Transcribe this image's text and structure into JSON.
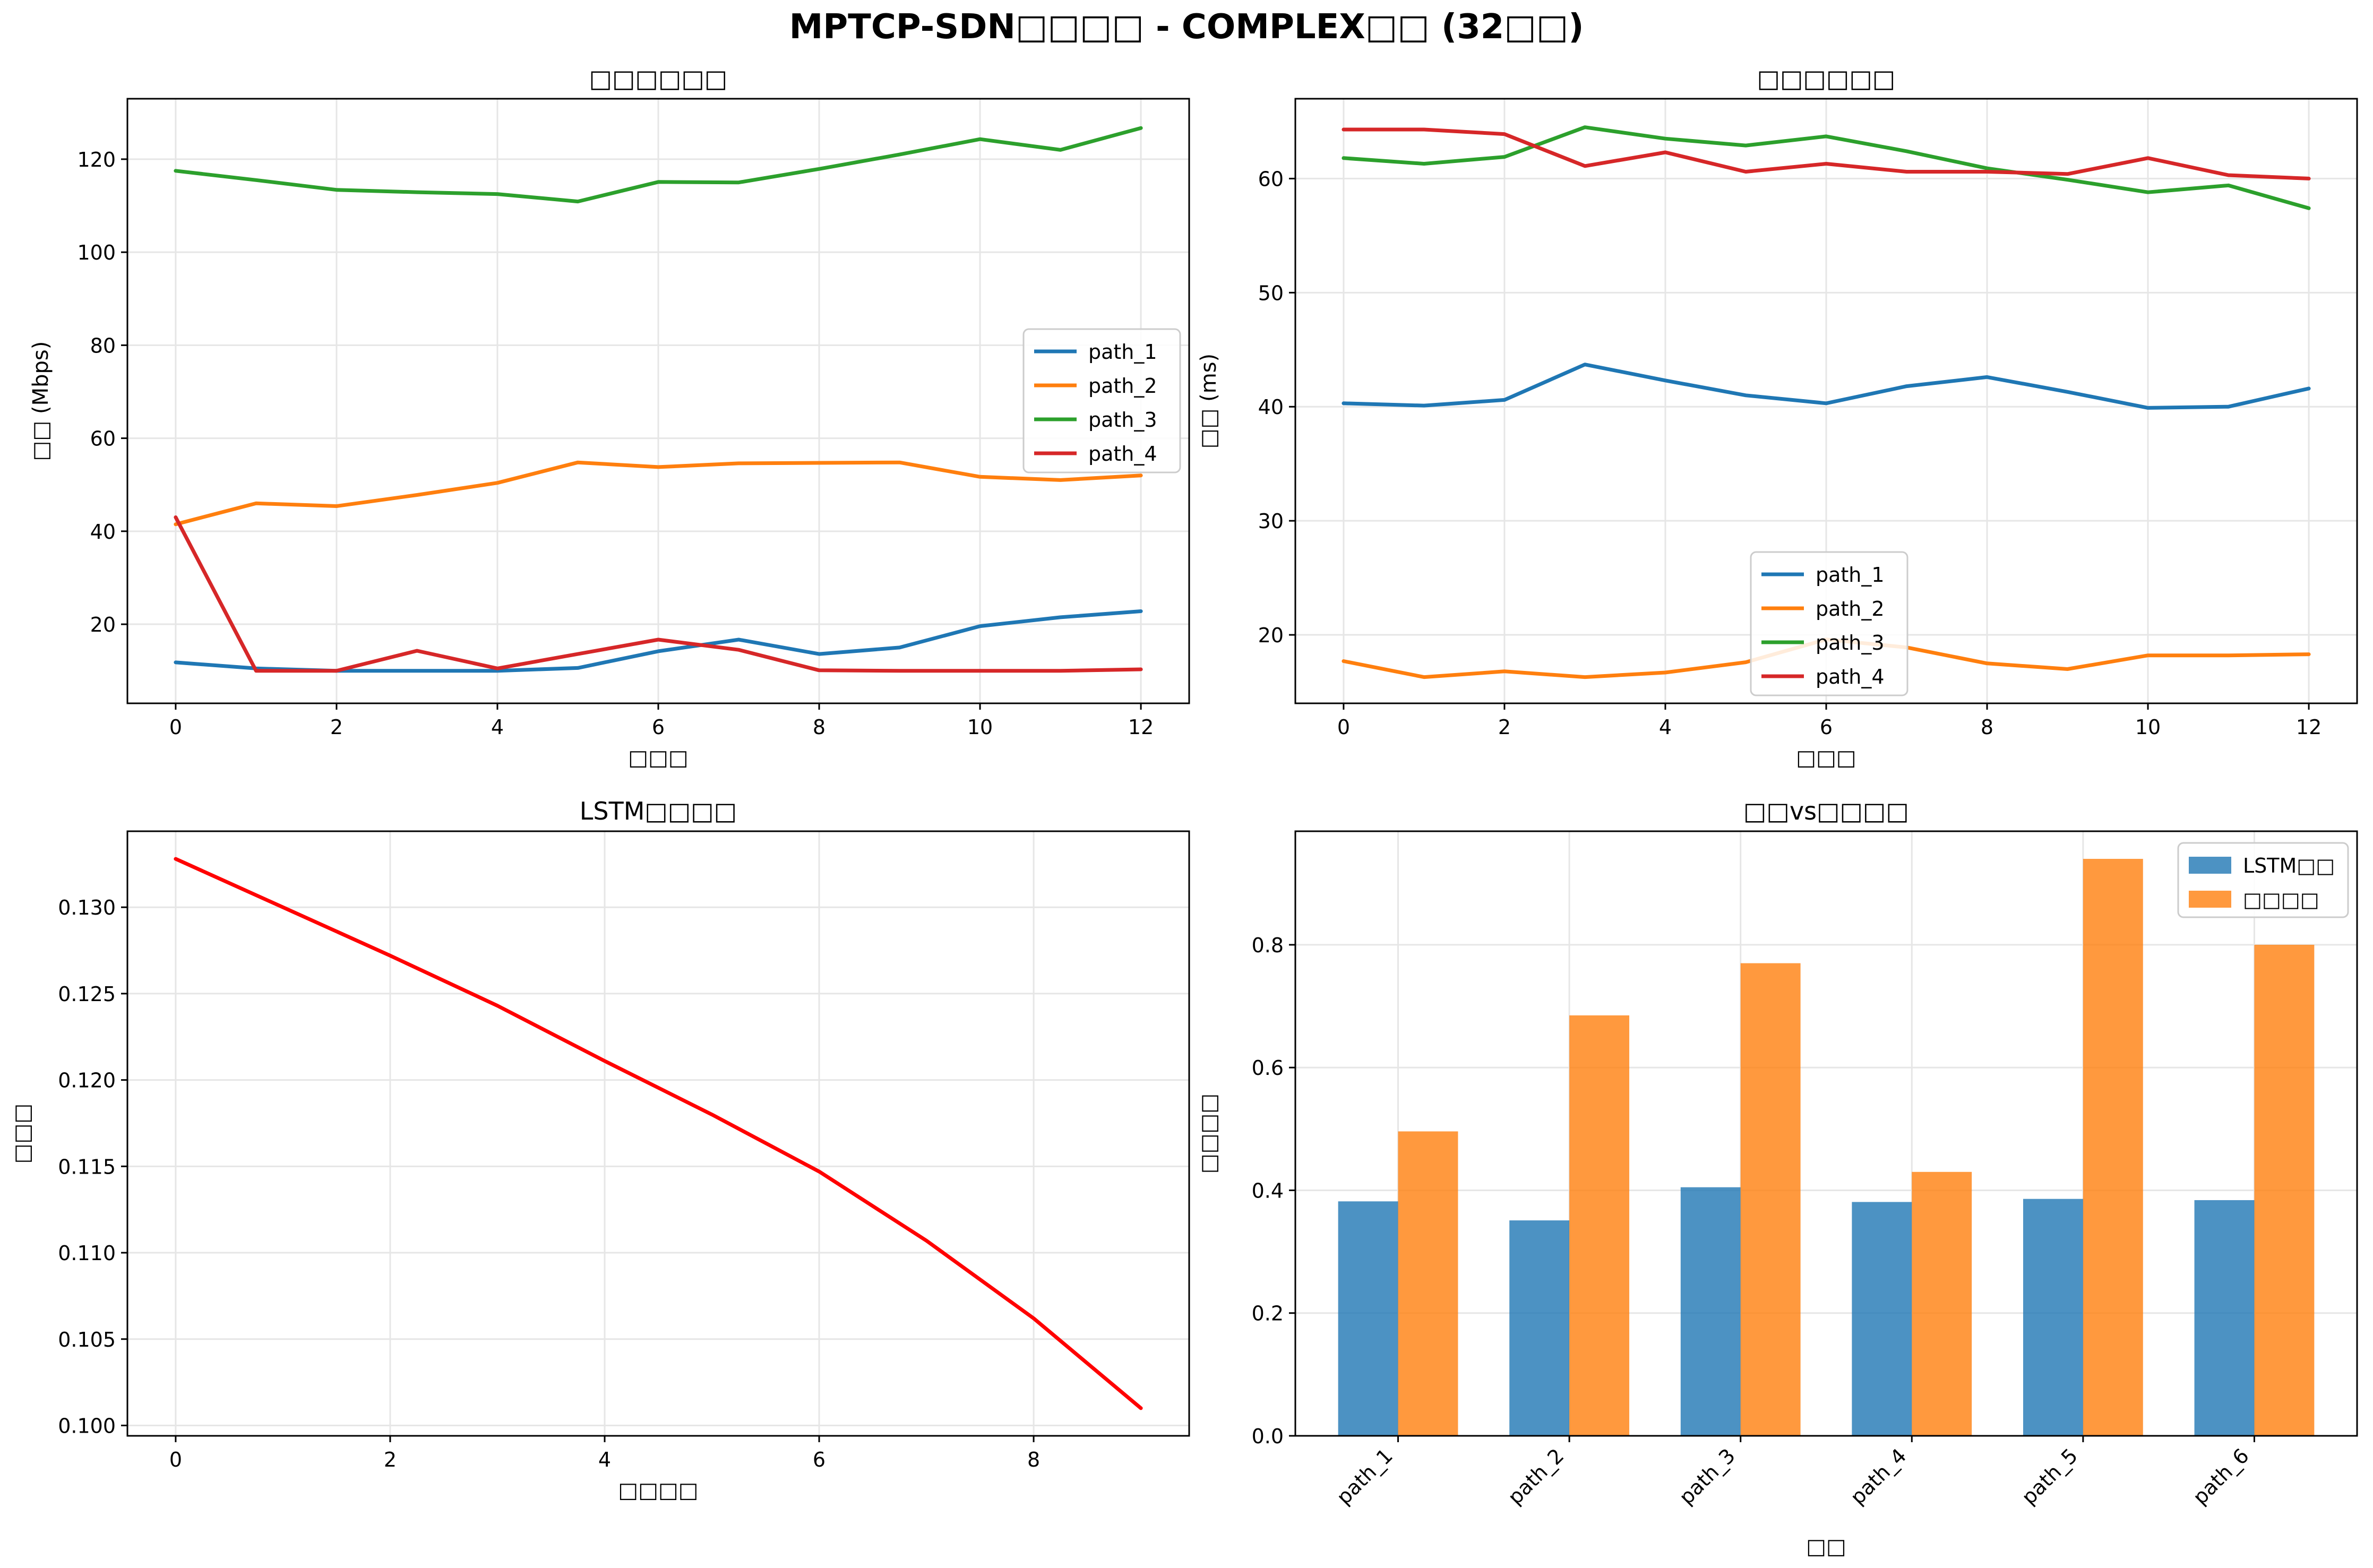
{
  "title": "MPTCP-SDN□□□□ - COMPLEX□□ (32□□)",
  "colors": {
    "blue": "#1f77b4",
    "orange": "#ff7f0e",
    "green": "#2ca02c",
    "red": "#d62728",
    "grid": "#e6e6e6",
    "loss": "#ff0000"
  },
  "chart_data": [
    {
      "type": "line",
      "title": "□□□□□□",
      "xlabel": "□□□",
      "ylabel": "□□ (Mbps)",
      "xlim": [
        -0.6,
        12.6
      ],
      "ylim": [
        3,
        133
      ],
      "xticks": [
        0,
        2,
        4,
        6,
        8,
        10,
        12
      ],
      "yticks": [
        20,
        40,
        60,
        80,
        100,
        120
      ],
      "grid": true,
      "legend": "center-right",
      "x": [
        0,
        1,
        2,
        3,
        4,
        5,
        6,
        7,
        8,
        9,
        10,
        11,
        12
      ],
      "series": [
        {
          "name": "path_1",
          "color": "#1f77b4",
          "values": [
            11.8,
            10.5,
            10.0,
            10.0,
            10.0,
            10.6,
            14.2,
            16.7,
            13.6,
            15.0,
            19.6,
            21.5,
            22.8
          ]
        },
        {
          "name": "path_2",
          "color": "#ff7f0e",
          "values": [
            41.5,
            46.0,
            45.4,
            47.8,
            50.4,
            54.8,
            53.8,
            54.6,
            54.7,
            54.8,
            51.7,
            51.0,
            52.0
          ]
        },
        {
          "name": "path_3",
          "color": "#2ca02c",
          "values": [
            117.5,
            115.5,
            113.4,
            112.9,
            112.5,
            110.9,
            115.1,
            115.0,
            117.9,
            121.0,
            124.3,
            122.0,
            126.7
          ]
        },
        {
          "name": "path_4",
          "color": "#d62728",
          "values": [
            43.0,
            10.0,
            10.0,
            14.3,
            10.5,
            13.6,
            16.7,
            14.5,
            10.1,
            10.0,
            10.0,
            10.0,
            10.3
          ]
        }
      ]
    },
    {
      "type": "line",
      "title": "□□□□□□",
      "xlabel": "□□□",
      "ylabel": "□□ (ms)",
      "xlim": [
        -0.6,
        12.6
      ],
      "ylim": [
        14,
        67
      ],
      "xticks": [
        0,
        2,
        4,
        6,
        8,
        10,
        12
      ],
      "yticks": [
        20,
        30,
        40,
        50,
        60
      ],
      "grid": true,
      "legend": "lower-center",
      "x": [
        0,
        1,
        2,
        3,
        4,
        5,
        6,
        7,
        8,
        9,
        10,
        11,
        12
      ],
      "series": [
        {
          "name": "path_1",
          "color": "#1f77b4",
          "values": [
            40.3,
            40.1,
            40.6,
            43.7,
            42.3,
            41.0,
            40.3,
            41.8,
            42.6,
            41.3,
            39.9,
            40.0,
            41.6
          ]
        },
        {
          "name": "path_2",
          "color": "#ff7f0e",
          "values": [
            17.7,
            16.3,
            16.8,
            16.3,
            16.7,
            17.6,
            19.6,
            18.9,
            17.5,
            17.0,
            18.2,
            18.2,
            18.3
          ]
        },
        {
          "name": "path_3",
          "color": "#2ca02c",
          "values": [
            61.8,
            61.3,
            61.9,
            64.5,
            63.5,
            62.9,
            63.7,
            62.4,
            60.9,
            59.9,
            58.8,
            59.4,
            57.4
          ]
        },
        {
          "name": "path_4",
          "color": "#d62728",
          "values": [
            64.3,
            64.3,
            63.9,
            61.1,
            62.3,
            60.6,
            61.3,
            60.6,
            60.6,
            60.4,
            61.8,
            60.3,
            60.0
          ]
        }
      ]
    },
    {
      "type": "line",
      "title": "LSTM□□□□",
      "xlabel": "□□□□",
      "ylabel": "□□□",
      "xlim": [
        -0.45,
        9.45
      ],
      "ylim": [
        0.0994,
        0.1344
      ],
      "xticks": [
        0,
        2,
        4,
        6,
        8
      ],
      "yticks": [
        0.1,
        0.105,
        0.11,
        0.115,
        0.12,
        0.125,
        0.13
      ],
      "ytick_labels": [
        "0.100",
        "0.105",
        "0.110",
        "0.115",
        "0.120",
        "0.125",
        "0.130"
      ],
      "grid": true,
      "x": [
        0,
        1,
        2,
        3,
        4,
        5,
        6,
        7,
        8,
        9
      ],
      "series": [
        {
          "color": "#ff0000",
          "values": [
            0.1328,
            0.13,
            0.1272,
            0.1243,
            0.1211,
            0.118,
            0.1147,
            0.1107,
            0.1062,
            0.101
          ]
        }
      ]
    },
    {
      "type": "bar",
      "title": "□□vs□□□□",
      "xlabel": "□□",
      "ylabel": "□□□□",
      "ylim": [
        0,
        0.985
      ],
      "yticks": [
        0.0,
        0.2,
        0.4,
        0.6,
        0.8
      ],
      "ytick_labels": [
        "0.0",
        "0.2",
        "0.4",
        "0.6",
        "0.8"
      ],
      "grid": true,
      "legend": "top-right",
      "categories": [
        "path_1",
        "path_2",
        "path_3",
        "path_4",
        "path_5",
        "path_6"
      ],
      "series": [
        {
          "name": "LSTM□□",
          "color": "#1f77b4",
          "values": [
            0.382,
            0.351,
            0.405,
            0.381,
            0.386,
            0.384
          ]
        },
        {
          "name": "□□□□",
          "color": "#ff7f0e",
          "values": [
            0.496,
            0.685,
            0.77,
            0.43,
            0.94,
            0.8
          ]
        }
      ]
    }
  ]
}
